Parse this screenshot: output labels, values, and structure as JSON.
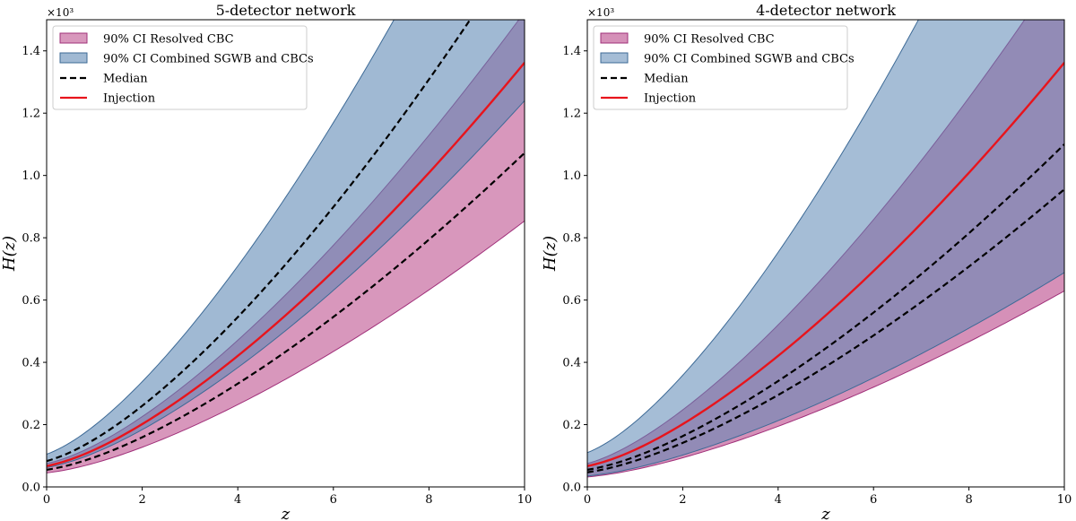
{
  "colors": {
    "resolved_fill": "#c76ba0",
    "resolved_edge": "#a0307a",
    "combined_fill": "#5b86b4",
    "combined_edge": "#3d6a96",
    "median": "#000000",
    "injection": "#e8141c"
  },
  "chart_data": [
    {
      "type": "area",
      "title": "5-detector network",
      "xlabel": "z",
      "ylabel": "H(z)",
      "xlim": [
        0,
        10
      ],
      "ylim": [
        0,
        1.5
      ],
      "y_multiplier": "×10³",
      "xticks": [
        0,
        2,
        4,
        6,
        8,
        10
      ],
      "xtick_labels": [
        "0",
        "2",
        "4",
        "6",
        "8",
        "10"
      ],
      "yticks": [
        0.0,
        0.2,
        0.4,
        0.6,
        0.8,
        1.0,
        1.2,
        1.4
      ],
      "ytick_labels": [
        "0.0",
        "0.2",
        "0.4",
        "0.6",
        "0.8",
        "1.0",
        "1.2",
        "1.4"
      ],
      "legend": [
        "90% CI Resolved CBC",
        "90% CI Combined SGWB and CBCs",
        "Median",
        "Injection"
      ],
      "legend_position": "upper-left",
      "injection": {
        "h0": 0.067,
        "om": 0.31
      },
      "series": [
        {
          "name": "90% CI Resolved CBC",
          "role": "band",
          "lower": {
            "h0": 0.045,
            "om": 0.27
          },
          "upper": {
            "h0": 0.075,
            "om": 0.31
          }
        },
        {
          "name": "90% CI Combined SGWB and CBCs",
          "role": "band",
          "lower": {
            "h0": 0.062,
            "om": 0.3
          },
          "upper": {
            "h0": 0.105,
            "om": 0.36
          }
        },
        {
          "name": "Median",
          "role": "median",
          "param": {
            "h0": 0.083,
            "om": 0.34
          }
        },
        {
          "name": "Median",
          "role": "median",
          "param": {
            "h0": 0.055,
            "om": 0.285
          }
        },
        {
          "name": "Injection",
          "role": "injection",
          "param": {
            "h0": 0.067,
            "om": 0.31
          }
        }
      ]
    },
    {
      "type": "area",
      "title": "4-detector network",
      "xlabel": "z",
      "ylabel": "H(z)",
      "xlim": [
        0,
        10
      ],
      "ylim": [
        0,
        1.5
      ],
      "y_multiplier": "×10³",
      "xticks": [
        0,
        2,
        4,
        6,
        8,
        10
      ],
      "xtick_labels": [
        "0",
        "2",
        "4",
        "6",
        "8",
        "10"
      ],
      "yticks": [
        0.0,
        0.2,
        0.4,
        0.6,
        0.8,
        1.0,
        1.2,
        1.4
      ],
      "ytick_labels": [
        "0.0",
        "0.2",
        "0.4",
        "0.6",
        "0.8",
        "1.0",
        "1.2",
        "1.4"
      ],
      "legend": [
        "90% CI Resolved CBC",
        "90% CI Combined SGWB and CBCs",
        "Median",
        "Injection"
      ],
      "legend_position": "upper-left",
      "series": [
        {
          "name": "90% CI Resolved CBC",
          "role": "band",
          "lower": {
            "h0": 0.032,
            "om": 0.29
          },
          "upper": {
            "h0": 0.075,
            "om": 0.38
          }
        },
        {
          "name": "90% CI Combined SGWB and CBCs",
          "role": "band",
          "lower": {
            "h0": 0.035,
            "om": 0.29
          },
          "upper": {
            "h0": 0.11,
            "om": 0.37
          }
        },
        {
          "name": "Median",
          "role": "median",
          "param": {
            "h0": 0.055,
            "om": 0.3
          }
        },
        {
          "name": "Median",
          "role": "median",
          "param": {
            "h0": 0.047,
            "om": 0.31
          }
        },
        {
          "name": "Injection",
          "role": "injection",
          "param": {
            "h0": 0.067,
            "om": 0.31
          }
        }
      ]
    }
  ]
}
